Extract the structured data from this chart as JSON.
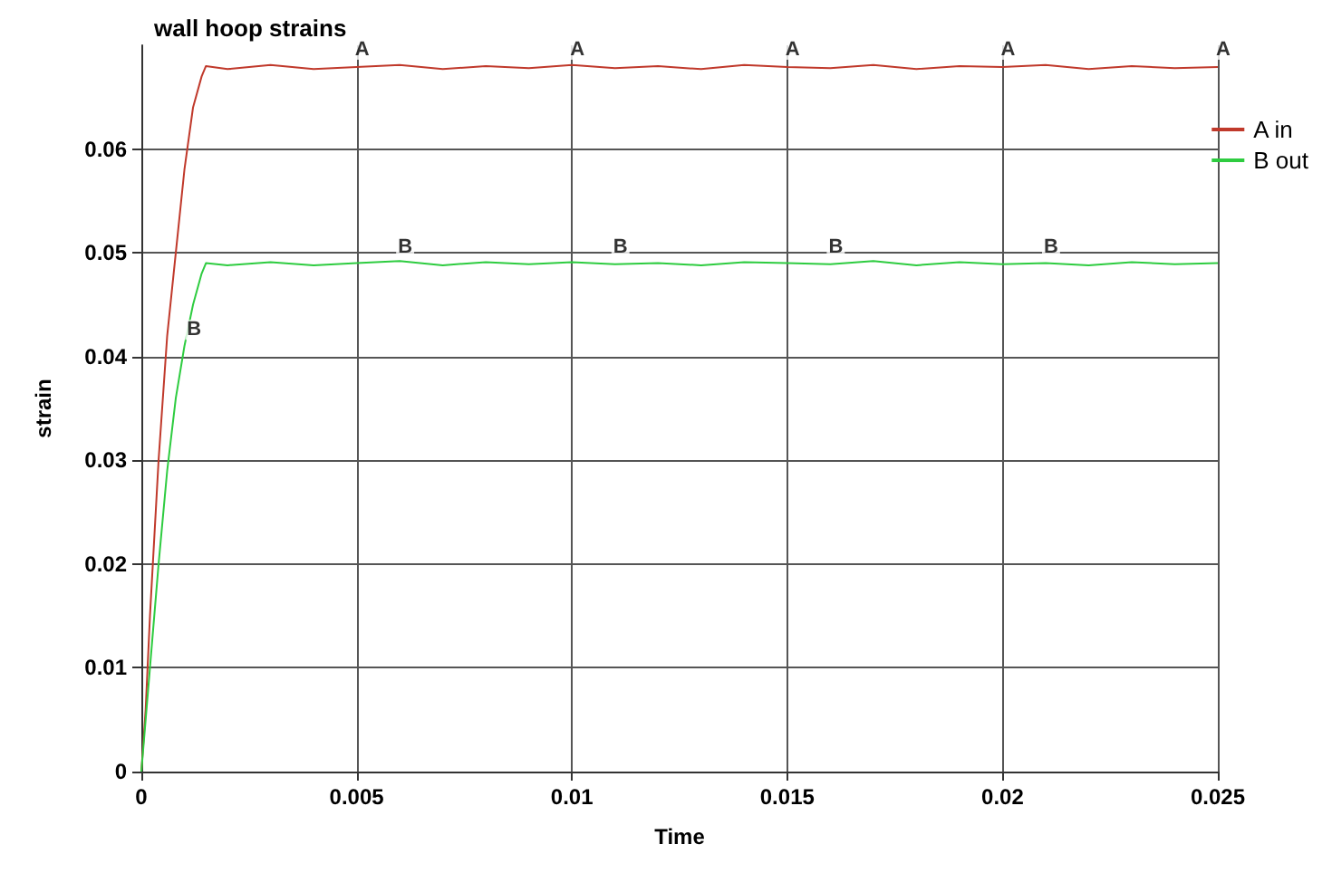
{
  "chart_data": {
    "type": "line",
    "title": "wall hoop strains",
    "xlabel": "Time",
    "ylabel": "strain",
    "xlim": [
      0,
      0.025
    ],
    "xticks": [
      0,
      0.005,
      0.01,
      0.015,
      0.02,
      0.025
    ],
    "ylim": [
      0,
      0.07
    ],
    "yticks": [
      0,
      0.01,
      0.02,
      0.03,
      0.04,
      0.05,
      0.06
    ],
    "grid": true,
    "legend": "right",
    "marker": "none",
    "line_style": "solid",
    "series": [
      {
        "name": "A in",
        "color": "#c0392b",
        "x": [
          0,
          0.0001,
          0.0002,
          0.0004,
          0.0006,
          0.0008,
          0.001,
          0.0012,
          0.0014,
          0.0015,
          0.002,
          0.003,
          0.004,
          0.005,
          0.006,
          0.007,
          0.008,
          0.009,
          0.01,
          0.011,
          0.012,
          0.013,
          0.014,
          0.015,
          0.016,
          0.017,
          0.018,
          0.019,
          0.02,
          0.021,
          0.022,
          0.023,
          0.024,
          0.025
        ],
        "values": [
          0,
          0.006,
          0.015,
          0.03,
          0.042,
          0.05,
          0.058,
          0.064,
          0.067,
          0.068,
          0.0677,
          0.0681,
          0.0677,
          0.0679,
          0.0681,
          0.0677,
          0.068,
          0.0678,
          0.0681,
          0.0678,
          0.068,
          0.0677,
          0.0681,
          0.0679,
          0.0678,
          0.0681,
          0.0677,
          0.068,
          0.0679,
          0.0681,
          0.0677,
          0.068,
          0.0678,
          0.0679
        ]
      },
      {
        "name": "B out",
        "color": "#2ecc40",
        "x": [
          0,
          0.0001,
          0.0002,
          0.0004,
          0.0006,
          0.0008,
          0.001,
          0.0012,
          0.0014,
          0.0015,
          0.002,
          0.003,
          0.004,
          0.005,
          0.006,
          0.007,
          0.008,
          0.009,
          0.01,
          0.011,
          0.012,
          0.013,
          0.014,
          0.015,
          0.016,
          0.017,
          0.018,
          0.019,
          0.02,
          0.021,
          0.022,
          0.023,
          0.024,
          0.025
        ],
        "values": [
          0,
          0.005,
          0.01,
          0.02,
          0.029,
          0.036,
          0.041,
          0.045,
          0.048,
          0.049,
          0.0488,
          0.0491,
          0.0488,
          0.049,
          0.0492,
          0.0488,
          0.0491,
          0.0489,
          0.0491,
          0.0489,
          0.049,
          0.0488,
          0.0491,
          0.049,
          0.0489,
          0.0492,
          0.0488,
          0.0491,
          0.0489,
          0.049,
          0.0488,
          0.0491,
          0.0489,
          0.049
        ]
      }
    ],
    "annotations": [
      {
        "text": "A",
        "x": 0.005,
        "y": 0.068
      },
      {
        "text": "A",
        "x": 0.01,
        "y": 0.068
      },
      {
        "text": "A",
        "x": 0.015,
        "y": 0.068
      },
      {
        "text": "A",
        "x": 0.02,
        "y": 0.068
      },
      {
        "text": "A",
        "x": 0.025,
        "y": 0.068
      },
      {
        "text": "B",
        "x": 0.0011,
        "y": 0.041
      },
      {
        "text": "B",
        "x": 0.006,
        "y": 0.049
      },
      {
        "text": "B",
        "x": 0.011,
        "y": 0.049
      },
      {
        "text": "B",
        "x": 0.016,
        "y": 0.049
      },
      {
        "text": "B",
        "x": 0.021,
        "y": 0.049
      }
    ]
  }
}
